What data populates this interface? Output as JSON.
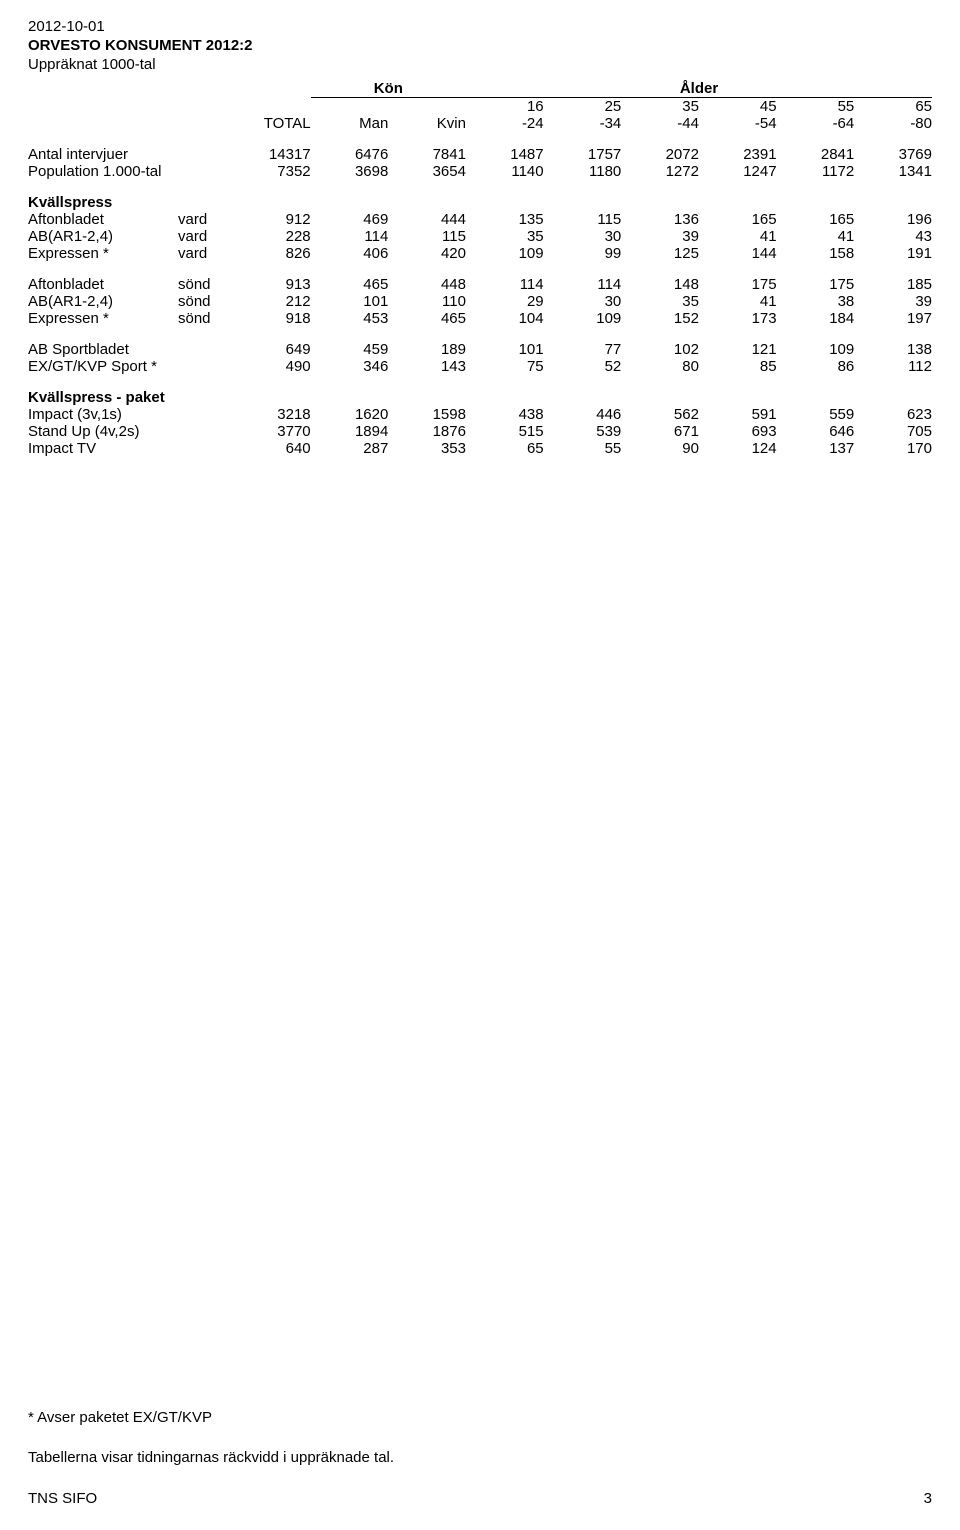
{
  "header": {
    "date": "2012-10-01",
    "title": "ORVESTO KONSUMENT 2012:2",
    "subtitle": "Uppräknat 1000-tal"
  },
  "columns": {
    "kon_header": "Kön",
    "alder_header": "Ålder",
    "total": "TOTAL",
    "kon": [
      "Man",
      "Kvin"
    ],
    "age_top": [
      "16",
      "25",
      "35",
      "45",
      "55",
      "65"
    ],
    "age_bottom": [
      "-24",
      "-34",
      "-44",
      "-54",
      "-64",
      "-80"
    ]
  },
  "meta_rows": [
    {
      "label": "Antal intervjuer",
      "values": [
        "14317",
        "6476",
        "7841",
        "1487",
        "1757",
        "2072",
        "2391",
        "2841",
        "3769"
      ]
    },
    {
      "label": "Population 1.000-tal",
      "values": [
        "7352",
        "3698",
        "3654",
        "1140",
        "1180",
        "1272",
        "1247",
        "1172",
        "1341"
      ]
    }
  ],
  "sections": [
    {
      "heading": "Kvällspress",
      "rows": [
        {
          "label": "Aftonbladet",
          "sub": "vard",
          "v": [
            "912",
            "469",
            "444",
            "135",
            "115",
            "136",
            "165",
            "165",
            "196"
          ]
        },
        {
          "label": "AB(AR1-2,4)",
          "sub": "vard",
          "v": [
            "228",
            "114",
            "115",
            "35",
            "30",
            "39",
            "41",
            "41",
            "43"
          ]
        },
        {
          "label": "Expressen   *",
          "sub": "vard",
          "v": [
            "826",
            "406",
            "420",
            "109",
            "99",
            "125",
            "144",
            "158",
            "191"
          ]
        }
      ]
    },
    {
      "rows": [
        {
          "label": "Aftonbladet",
          "sub": "sönd",
          "v": [
            "913",
            "465",
            "448",
            "114",
            "114",
            "148",
            "175",
            "175",
            "185"
          ]
        },
        {
          "label": "AB(AR1-2,4)",
          "sub": "sönd",
          "v": [
            "212",
            "101",
            "110",
            "29",
            "30",
            "35",
            "41",
            "38",
            "39"
          ]
        },
        {
          "label": "Expressen   *",
          "sub": "sönd",
          "v": [
            "918",
            "453",
            "465",
            "104",
            "109",
            "152",
            "173",
            "184",
            "197"
          ]
        }
      ]
    },
    {
      "rows": [
        {
          "label": "AB Sportbladet",
          "sub": "",
          "v": [
            "649",
            "459",
            "189",
            "101",
            "77",
            "102",
            "121",
            "109",
            "138"
          ]
        },
        {
          "label": "EX/GT/KVP Sport *",
          "sub": "",
          "v": [
            "490",
            "346",
            "143",
            "75",
            "52",
            "80",
            "85",
            "86",
            "112"
          ]
        }
      ]
    },
    {
      "heading": "Kvällspress - paket",
      "rows": [
        {
          "label": "Impact   (3v,1s)",
          "sub": "",
          "v": [
            "3218",
            "1620",
            "1598",
            "438",
            "446",
            "562",
            "591",
            "559",
            "623"
          ]
        },
        {
          "label": "Stand Up  (4v,2s)",
          "sub": "",
          "v": [
            "3770",
            "1894",
            "1876",
            "515",
            "539",
            "671",
            "693",
            "646",
            "705"
          ]
        },
        {
          "label": "Impact TV",
          "sub": "",
          "v": [
            "640",
            "287",
            "353",
            "65",
            "55",
            "90",
            "124",
            "137",
            "170"
          ]
        }
      ]
    }
  ],
  "footnotes": {
    "star": "* Avser paketet EX/GT/KVP",
    "reach": "Tabellerna visar tidningarnas räckvidd i uppräknade tal.",
    "source": "TNS SIFO",
    "page": "3"
  }
}
